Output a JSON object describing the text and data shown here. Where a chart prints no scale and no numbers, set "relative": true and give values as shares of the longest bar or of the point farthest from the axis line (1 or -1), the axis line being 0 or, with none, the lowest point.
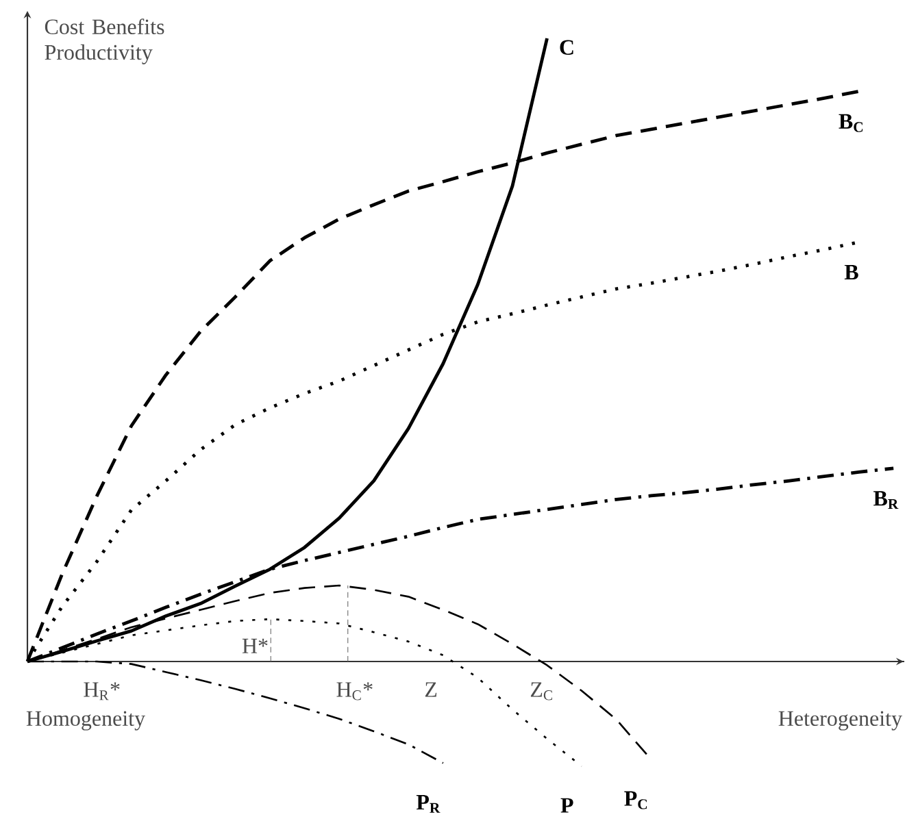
{
  "chart_data": {
    "type": "line",
    "relative": true,
    "ylabel": "Cost Benefits Productivity",
    "xlabel": "Heterogeneity",
    "categories": [
      null,
      null,
      null,
      null,
      null,
      null,
      null,
      null,
      null,
      null,
      null,
      null,
      null,
      null,
      null,
      null,
      null,
      null,
      null,
      null,
      null,
      null,
      null,
      null,
      null,
      null
    ],
    "series": [
      {
        "name": "C",
        "color": "#000000",
        "line_style": "solid",
        "values": [
          0,
          0.016,
          0.033,
          0.049,
          0.073,
          0.093,
          0.121,
          0.148,
          0.183,
          0.23,
          0.29,
          0.374,
          0.478,
          0.605,
          0.763,
          1,
          null,
          null,
          null,
          null,
          null,
          null,
          null,
          null,
          null,
          null
        ]
      },
      {
        "name": "B$_{C}$",
        "color": "#000000",
        "line_style": "dashed",
        "values": [
          0,
          0.14,
          0.265,
          0.378,
          0.46,
          0.53,
          0.585,
          0.643,
          0.68,
          0.71,
          0.733,
          0.755,
          0.77,
          0.786,
          0.8,
          0.816,
          0.83,
          0.844,
          0.854,
          0.864,
          0.874,
          0.884,
          0.894,
          0.904,
          0.915,
          null
        ]
      },
      {
        "name": "B",
        "color": "#000000",
        "line_style": "dotted",
        "values": [
          0,
          0.088,
          0.16,
          0.243,
          0.29,
          0.34,
          0.38,
          0.407,
          0.43,
          0.45,
          0.475,
          0.5,
          0.525,
          0.545,
          0.558,
          0.572,
          0.585,
          0.598,
          0.607,
          0.617,
          0.627,
          0.638,
          0.65,
          0.661,
          0.673,
          null
        ]
      },
      {
        "name": "B$_{R}$",
        "color": "#000000",
        "line_style": "dashdot",
        "values": [
          0,
          0.022,
          0.044,
          0.065,
          0.087,
          0.108,
          0.128,
          0.148,
          0.162,
          0.175,
          0.188,
          0.201,
          0.215,
          0.228,
          0.236,
          0.244,
          0.252,
          0.26,
          0.266,
          0.271,
          0.277,
          0.284,
          0.29,
          0.297,
          0.304,
          0.31
        ]
      },
      {
        "name": "P$_{C}$",
        "color": "#000000",
        "line_style": "dashed",
        "values": [
          0,
          0.018,
          0.036,
          0.055,
          0.069,
          0.083,
          0.097,
          0.11,
          0.118,
          0.122,
          0.115,
          0.104,
          0.083,
          0.06,
          0.028,
          -0.006,
          -0.047,
          -0.093,
          -0.157,
          null,
          null,
          null,
          null,
          null,
          null,
          null
        ]
      },
      {
        "name": "P",
        "color": "#000000",
        "line_style": "dotted",
        "values": [
          0,
          0.014,
          0.028,
          0.042,
          0.05,
          0.058,
          0.065,
          0.068,
          0.065,
          0.061,
          0.047,
          0.032,
          0.01,
          -0.026,
          -0.077,
          -0.124,
          -0.168,
          null,
          null,
          null,
          null,
          null,
          null,
          null,
          null,
          null
        ]
      },
      {
        "name": "P$_{R}$",
        "color": "#000000",
        "line_style": "dashdot",
        "values": [
          0,
          0,
          0,
          -0.004,
          -0.017,
          -0.03,
          -0.044,
          -0.059,
          -0.075,
          -0.092,
          -0.112,
          -0.133,
          -0.163,
          null,
          null,
          null,
          null,
          null,
          null,
          null,
          null,
          null,
          null,
          null,
          null,
          null
        ]
      }
    ],
    "annotations": [
      "H$_{R}$*",
      "H*",
      "H$_{C}$*",
      "Z",
      "Z$_{C}$",
      "Homogeneity"
    ]
  }
}
